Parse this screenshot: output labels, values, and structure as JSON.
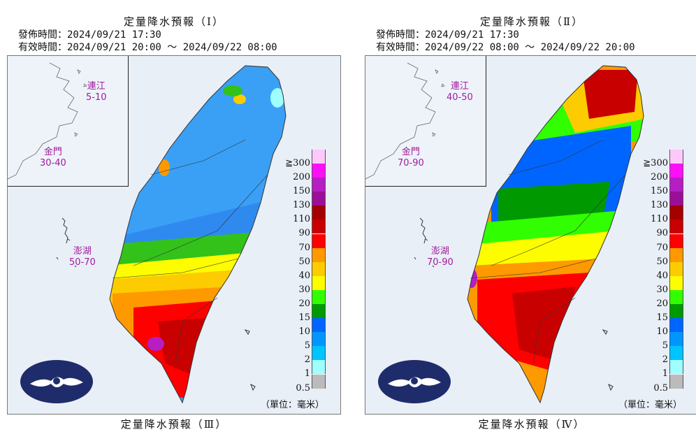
{
  "panels": [
    {
      "title": "定量降水預報（Ⅰ）",
      "issue_time": "發佈時間：2024/09/21 17:30",
      "valid_time": "有效時間：2024/09/21 20:00 ～ 2024/09/22 08:00",
      "footer": "定量降水預報（Ⅲ）",
      "islands": {
        "matsu_name": "連江",
        "matsu_range": "5-10",
        "kinmen_name": "金門",
        "kinmen_range": "30-40",
        "penghu_name": "澎湖",
        "penghu_range": "50-70"
      },
      "unit": "（單位：毫米）"
    },
    {
      "title": "定量降水預報（Ⅱ）",
      "issue_time": "發佈時間：2024/09/21 17:30",
      "valid_time": "有效時間：2024/09/22 08:00 ～ 2024/09/22 20:00",
      "footer": "定量降水預報（Ⅳ）",
      "islands": {
        "matsu_name": "連江",
        "matsu_range": "40-50",
        "kinmen_name": "金門",
        "kinmen_range": "70-90",
        "penghu_name": "澎湖",
        "penghu_range": "70-90"
      },
      "unit": "（單位：毫米）"
    }
  ],
  "legend": {
    "labels": [
      "≧300",
      "200",
      "150",
      "130",
      "110",
      "90",
      "70",
      "50",
      "40",
      "30",
      "20",
      "15",
      "10",
      "5",
      "2",
      "1",
      "0.5"
    ],
    "colors": [
      "#fdc9fb",
      "#fb10f8",
      "#b41ec2",
      "#9b0f98",
      "#a40000",
      "#c80000",
      "#fe0000",
      "#fe9900",
      "#fdcc00",
      "#fefd00",
      "#31fe00",
      "#009a00",
      "#0065fe",
      "#0096fe",
      "#00c4ff",
      "#9efffe",
      "#bbbbbb"
    ]
  }
}
